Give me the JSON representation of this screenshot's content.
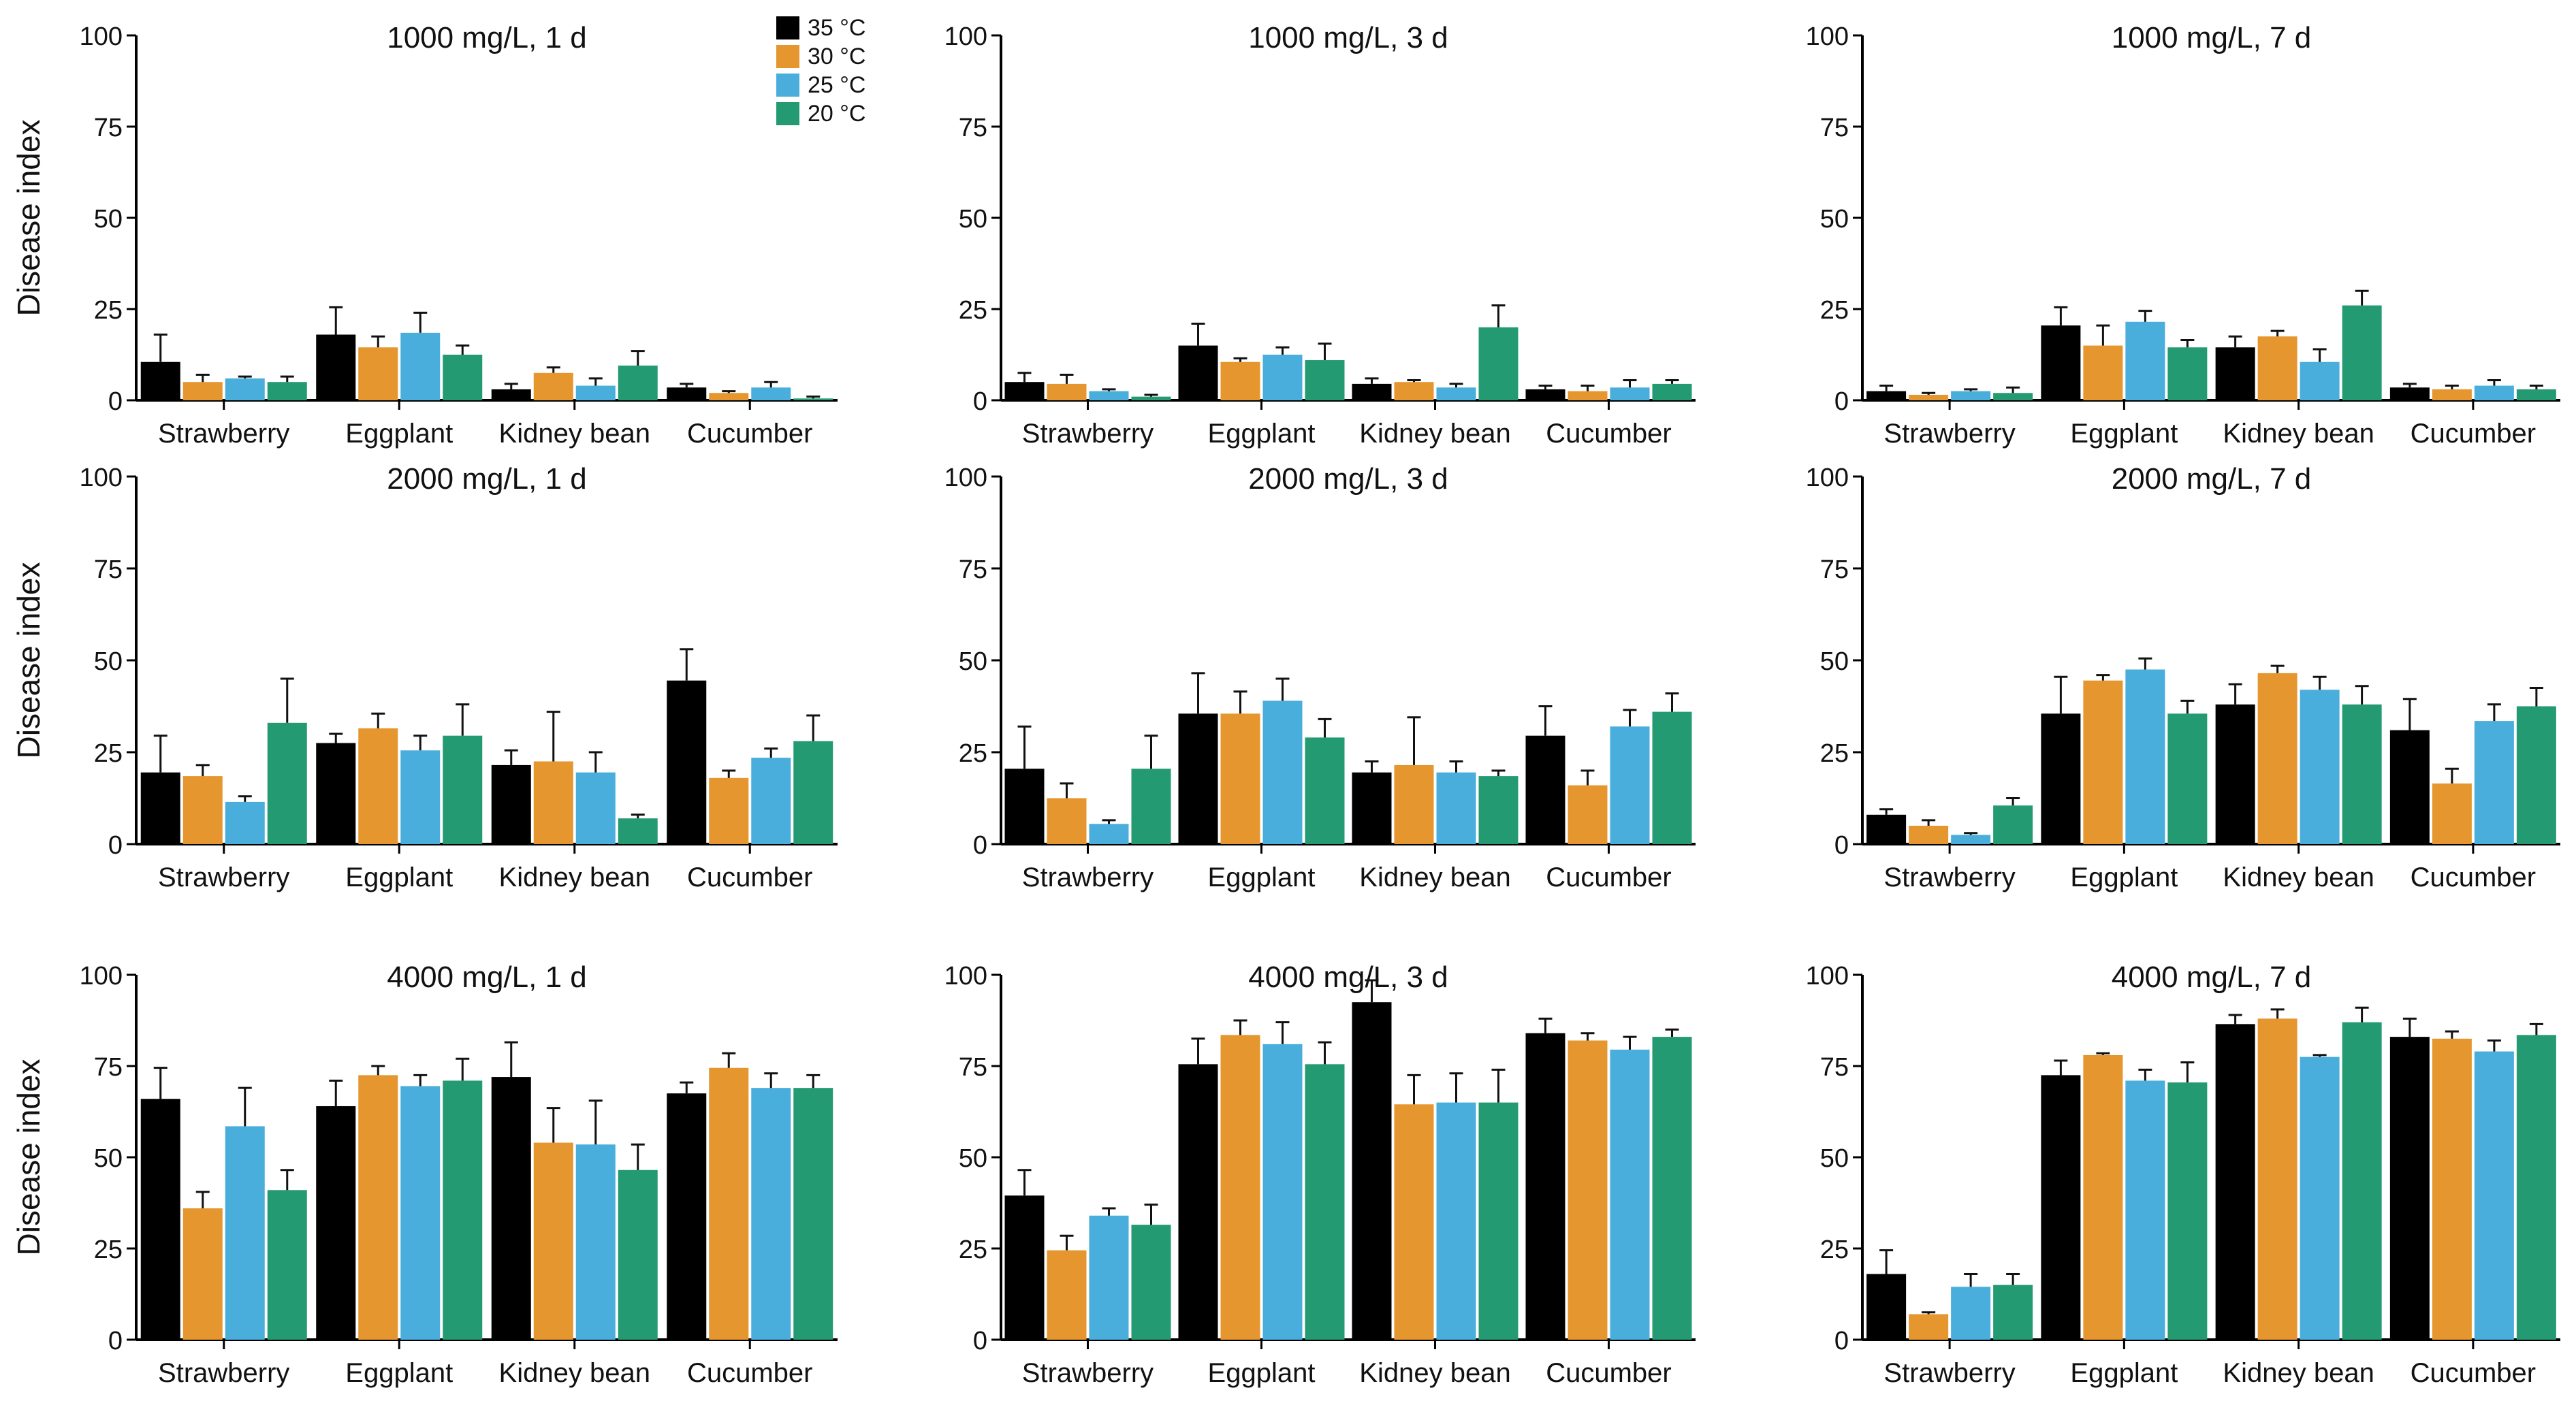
{
  "figure": {
    "ylabel": "Disease index",
    "categories": [
      "Strawberry",
      "Eggplant",
      "Kidney bean",
      "Cucumber"
    ],
    "yticks": [
      0,
      25,
      50,
      75,
      100
    ],
    "legend": [
      {
        "name": "35 °C",
        "color": "#000000"
      },
      {
        "name": "30 °C",
        "color": "#E6962E"
      },
      {
        "name": "25 °C",
        "color": "#4AAEDC"
      },
      {
        "name": "20 °C",
        "color": "#239A72"
      }
    ]
  },
  "chart_data": [
    {
      "type": "bar",
      "title": "1000 mg/L, 1 d",
      "ylabel": "Disease index",
      "ylim": [
        0,
        100
      ],
      "categories": [
        "Strawberry",
        "Eggplant",
        "Kidney bean",
        "Cucumber"
      ],
      "series": [
        {
          "name": "35 °C",
          "values": [
            10.5,
            18,
            3,
            3.5
          ],
          "errors": [
            7.5,
            7.5,
            1.5,
            1
          ]
        },
        {
          "name": "30 °C",
          "values": [
            5,
            14.5,
            7.5,
            2
          ],
          "errors": [
            2,
            3,
            1.5,
            0.5
          ]
        },
        {
          "name": "25 °C",
          "values": [
            6,
            18.5,
            4,
            3.5
          ],
          "errors": [
            0.5,
            5.5,
            2,
            1.5
          ]
        },
        {
          "name": "20 °C",
          "values": [
            5,
            12.5,
            9.5,
            0.5
          ],
          "errors": [
            1.5,
            2.5,
            4,
            0.5
          ]
        }
      ]
    },
    {
      "type": "bar",
      "title": "1000 mg/L, 3 d",
      "ylabel": "",
      "ylim": [
        0,
        100
      ],
      "categories": [
        "Strawberry",
        "Eggplant",
        "Kidney bean",
        "Cucumber"
      ],
      "series": [
        {
          "name": "35 °C",
          "values": [
            5,
            15,
            4.5,
            3
          ],
          "errors": [
            2.5,
            6,
            1.5,
            1
          ]
        },
        {
          "name": "30 °C",
          "values": [
            4.5,
            10.5,
            5,
            2.5
          ],
          "errors": [
            2.5,
            1,
            0.5,
            1.5
          ]
        },
        {
          "name": "25 °C",
          "values": [
            2.5,
            12.5,
            3.5,
            3.5
          ],
          "errors": [
            0.5,
            2,
            1,
            2
          ]
        },
        {
          "name": "20 °C",
          "values": [
            1,
            11,
            20,
            4.5
          ],
          "errors": [
            0.5,
            4.5,
            6,
            1
          ]
        }
      ]
    },
    {
      "type": "bar",
      "title": "1000 mg/L, 7 d",
      "ylabel": "",
      "ylim": [
        0,
        100
      ],
      "categories": [
        "Strawberry",
        "Eggplant",
        "Kidney bean",
        "Cucumber"
      ],
      "series": [
        {
          "name": "35 °C",
          "values": [
            2.5,
            20.5,
            14.5,
            3.5
          ],
          "errors": [
            1.5,
            5,
            3,
            1
          ]
        },
        {
          "name": "30 °C",
          "values": [
            1.5,
            15,
            17.5,
            3
          ],
          "errors": [
            0.5,
            5.5,
            1.5,
            1
          ]
        },
        {
          "name": "25 °C",
          "values": [
            2.5,
            21.5,
            10.5,
            4
          ],
          "errors": [
            0.5,
            3,
            3.5,
            1.5
          ]
        },
        {
          "name": "20 °C",
          "values": [
            2,
            14.5,
            26,
            3
          ],
          "errors": [
            1.5,
            2,
            4,
            1
          ]
        }
      ]
    },
    {
      "type": "bar",
      "title": "2000 mg/L, 1 d",
      "ylabel": "Disease index",
      "ylim": [
        0,
        100
      ],
      "categories": [
        "Strawberry",
        "Eggplant",
        "Kidney bean",
        "Cucumber"
      ],
      "series": [
        {
          "name": "35 °C",
          "values": [
            19.5,
            27.5,
            21.5,
            44.5
          ],
          "errors": [
            10,
            2.5,
            4,
            8.5
          ]
        },
        {
          "name": "30 °C",
          "values": [
            18.5,
            31.5,
            22.5,
            18
          ],
          "errors": [
            3,
            4,
            13.5,
            2
          ]
        },
        {
          "name": "25 °C",
          "values": [
            11.5,
            25.5,
            19.5,
            23.5
          ],
          "errors": [
            1.5,
            4,
            5.5,
            2.5
          ]
        },
        {
          "name": "20 °C",
          "values": [
            33,
            29.5,
            7,
            28
          ],
          "errors": [
            12,
            8.5,
            1,
            7
          ]
        }
      ]
    },
    {
      "type": "bar",
      "title": "2000 mg/L, 3 d",
      "ylabel": "",
      "ylim": [
        0,
        100
      ],
      "categories": [
        "Strawberry",
        "Eggplant",
        "Kidney bean",
        "Cucumber"
      ],
      "series": [
        {
          "name": "35 °C",
          "values": [
            20.5,
            35.5,
            19.5,
            29.5
          ],
          "errors": [
            11.5,
            11,
            3,
            8
          ]
        },
        {
          "name": "30 °C",
          "values": [
            12.5,
            35.5,
            21.5,
            16
          ],
          "errors": [
            4,
            6,
            13,
            4
          ]
        },
        {
          "name": "25 °C",
          "values": [
            5.5,
            39,
            19.5,
            32
          ],
          "errors": [
            1,
            6,
            3,
            4.5
          ]
        },
        {
          "name": "20 °C",
          "values": [
            20.5,
            29,
            18.5,
            36
          ],
          "errors": [
            9,
            5,
            1.5,
            5
          ]
        }
      ]
    },
    {
      "type": "bar",
      "title": "2000 mg/L, 7 d",
      "ylabel": "",
      "ylim": [
        0,
        100
      ],
      "categories": [
        "Strawberry",
        "Eggplant",
        "Kidney bean",
        "Cucumber"
      ],
      "series": [
        {
          "name": "35 °C",
          "values": [
            8,
            35.5,
            38,
            31
          ],
          "errors": [
            1.5,
            10,
            5.5,
            8.5
          ]
        },
        {
          "name": "30 °C",
          "values": [
            5,
            44.5,
            46.5,
            16.5
          ],
          "errors": [
            1.5,
            1.5,
            2,
            4
          ]
        },
        {
          "name": "25 °C",
          "values": [
            2.5,
            47.5,
            42,
            33.5
          ],
          "errors": [
            0.5,
            3,
            3.5,
            4.5
          ]
        },
        {
          "name": "20 °C",
          "values": [
            10.5,
            35.5,
            38,
            37.5
          ],
          "errors": [
            2,
            3.5,
            5,
            5
          ]
        }
      ]
    },
    {
      "type": "bar",
      "title": "4000 mg/L, 1 d",
      "ylabel": "Disease index",
      "ylim": [
        0,
        100
      ],
      "categories": [
        "Strawberry",
        "Eggplant",
        "Kidney bean",
        "Cucumber"
      ],
      "series": [
        {
          "name": "35 °C",
          "values": [
            66,
            64,
            72,
            67.5
          ],
          "errors": [
            8.5,
            7,
            9.5,
            3
          ]
        },
        {
          "name": "30 °C",
          "values": [
            36,
            72.5,
            54,
            74.5
          ],
          "errors": [
            4.5,
            2.5,
            9.5,
            4
          ]
        },
        {
          "name": "25 °C",
          "values": [
            58.5,
            69.5,
            53.5,
            69
          ],
          "errors": [
            10.5,
            3,
            12,
            4
          ]
        },
        {
          "name": "20 °C",
          "values": [
            41,
            71,
            46.5,
            69
          ],
          "errors": [
            5.5,
            6,
            7,
            3.5
          ]
        }
      ]
    },
    {
      "type": "bar",
      "title": "4000 mg/L, 3 d",
      "ylabel": "",
      "ylim": [
        0,
        100
      ],
      "categories": [
        "Strawberry",
        "Eggplant",
        "Kidney bean",
        "Cucumber"
      ],
      "series": [
        {
          "name": "35 °C",
          "values": [
            39.5,
            75.5,
            92.5,
            84
          ],
          "errors": [
            7,
            7,
            6,
            4
          ]
        },
        {
          "name": "30 °C",
          "values": [
            24.5,
            83.5,
            64.5,
            82
          ],
          "errors": [
            4,
            4,
            8,
            2
          ]
        },
        {
          "name": "25 °C",
          "values": [
            34,
            81,
            65,
            79.5
          ],
          "errors": [
            2,
            6,
            8,
            3.5
          ]
        },
        {
          "name": "20 °C",
          "values": [
            31.5,
            75.5,
            65,
            83
          ],
          "errors": [
            5.5,
            6,
            9,
            2
          ]
        }
      ]
    },
    {
      "type": "bar",
      "title": "4000 mg/L, 7 d",
      "ylabel": "",
      "ylim": [
        0,
        100
      ],
      "categories": [
        "Strawberry",
        "Eggplant",
        "Kidney bean",
        "Cucumber"
      ],
      "series": [
        {
          "name": "35 °C",
          "values": [
            18,
            72.5,
            86.5,
            83
          ],
          "errors": [
            6.5,
            4,
            2.5,
            5
          ]
        },
        {
          "name": "30 °C",
          "values": [
            7,
            78,
            88,
            82.5
          ],
          "errors": [
            0.5,
            0.5,
            2.5,
            2
          ]
        },
        {
          "name": "25 °C",
          "values": [
            14.5,
            71,
            77.5,
            79
          ],
          "errors": [
            3.5,
            3,
            0.5,
            3
          ]
        },
        {
          "name": "20 °C",
          "values": [
            15,
            70.5,
            87,
            83.5
          ],
          "errors": [
            3,
            5.5,
            4,
            3
          ]
        }
      ]
    }
  ]
}
